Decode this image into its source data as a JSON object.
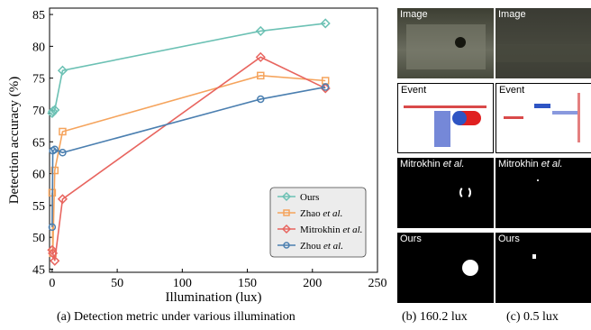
{
  "chart_data": {
    "type": "line",
    "xlabel": "Illumination (lux)",
    "ylabel": "Detection accuracy (%)",
    "xlim": [
      -2,
      250
    ],
    "ylim": [
      44.5,
      86
    ],
    "xticks": [
      0,
      50,
      100,
      150,
      200,
      250
    ],
    "yticks": [
      45,
      50,
      55,
      60,
      65,
      70,
      75,
      80,
      85
    ],
    "grid": false,
    "legend_position": "bottom-right",
    "series": [
      {
        "name": "Ours",
        "color": "#6cc1b4",
        "marker": "diamond",
        "x": [
          0,
          0.5,
          2,
          8,
          160.2,
          210
        ],
        "y": [
          69.5,
          69.8,
          70.0,
          76.2,
          82.4,
          83.6
        ]
      },
      {
        "name": "Zhao et al.",
        "color": "#f5a45d",
        "marker": "square",
        "x": [
          0,
          0.5,
          2,
          8,
          160.2,
          210
        ],
        "y": [
          57,
          47.5,
          60.5,
          66.6,
          75.4,
          74.6
        ]
      },
      {
        "name": "Mitrokhin et al.",
        "color": "#e8655f",
        "marker": "diamond",
        "x": [
          0,
          0.5,
          2,
          8,
          160.2,
          210
        ],
        "y": [
          48,
          47.5,
          46.3,
          56,
          78.3,
          73.4
        ]
      },
      {
        "name": "Zhou et al.",
        "color": "#4b7fb0",
        "marker": "circle",
        "x": [
          0,
          0.5,
          2,
          8,
          160.2,
          210
        ],
        "y": [
          51.6,
          63.6,
          63.8,
          63.3,
          71.7,
          73.6
        ]
      }
    ]
  },
  "legend": {
    "items": [
      {
        "base": "Ours",
        "suffix": ""
      },
      {
        "base": "Zhao ",
        "suffix": "et al."
      },
      {
        "base": "Mitrokhin ",
        "suffix": "et al."
      },
      {
        "base": "Zhou ",
        "suffix": "et al."
      }
    ]
  },
  "captions": {
    "a": "(a) Detection metric under various illumination",
    "b": "(b) 160.2 lux",
    "c": "(c) 0.5 lux"
  },
  "panels": {
    "image": "Image",
    "event": "Event",
    "mitrokhin_base": "Mitrokhin ",
    "mitrokhin_suffix": "et al.",
    "ours": "Ours"
  }
}
